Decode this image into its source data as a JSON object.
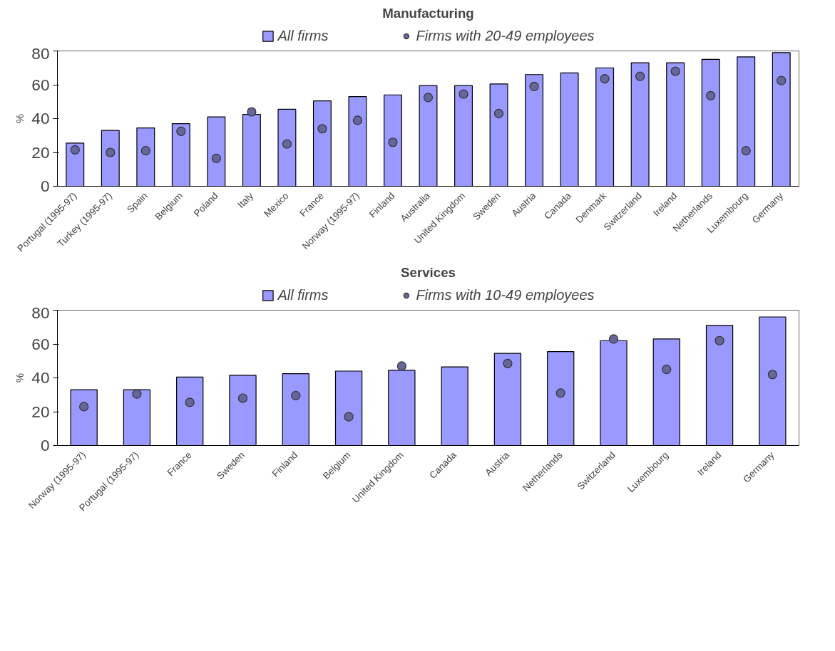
{
  "chart_data": [
    {
      "type": "bar",
      "title": "Manufacturing",
      "ylabel": "%",
      "categories": [
        "Portugal (1995-97)",
        "Turkey (1995-97)",
        "Spain",
        "Belgium",
        "Poland",
        "Italy",
        "Mexico",
        "France",
        "Norway (1995-97)",
        "Finland",
        "Australia",
        "United Kingdom",
        "Sweden",
        "Austria",
        "Canada",
        "Denmark",
        "Switzerland",
        "Ireland",
        "Netherlands",
        "Luxembourg",
        "Germany"
      ],
      "ylim": [
        0,
        80
      ],
      "yticks": [
        0,
        20,
        40,
        60,
        80
      ],
      "legend": "top",
      "grid": false,
      "series": [
        {
          "name": "All firms",
          "type": "bar",
          "color": "#9999ff",
          "values": [
            25.5,
            33,
            34.5,
            37,
            41,
            42.5,
            45.5,
            50.5,
            53,
            54,
            59.5,
            59.5,
            60.5,
            66,
            67,
            70,
            73,
            73,
            75,
            76.5,
            79
          ]
        },
        {
          "name": "Firms with 20-49 employees",
          "type": "scatter",
          "marker": "circle",
          "color": "#666699",
          "values": [
            21.5,
            20,
            21,
            32.5,
            16.5,
            44,
            25,
            34,
            39,
            26,
            52.5,
            54.5,
            43,
            59,
            null,
            63.5,
            65,
            68,
            53.5,
            21,
            62.5
          ]
        }
      ]
    },
    {
      "type": "bar",
      "title": "Services",
      "ylabel": "%",
      "categories": [
        "Norway (1995-97)",
        "Portugal (1995-97)",
        "France",
        "Sweden",
        "Finland",
        "Belgium",
        "United Kingdom",
        "Canada",
        "Austria",
        "Netherlands",
        "Switzerland",
        "Luxembourg",
        "Ireland",
        "Germany"
      ],
      "ylim": [
        0,
        80
      ],
      "yticks": [
        0,
        20,
        40,
        60,
        80
      ],
      "legend": "top",
      "grid": false,
      "series": [
        {
          "name": "All firms",
          "type": "bar",
          "color": "#9999ff",
          "values": [
            33,
            33,
            40.5,
            41.5,
            42.5,
            44,
            44.5,
            46.5,
            54.5,
            55.5,
            62,
            63,
            71,
            76
          ]
        },
        {
          "name": "Firms with 10-49 employees",
          "type": "scatter",
          "marker": "circle",
          "color": "#666699",
          "values": [
            23,
            30.5,
            25.5,
            28,
            29.5,
            17,
            47,
            null,
            48.5,
            31,
            63,
            45,
            62,
            42
          ]
        }
      ]
    }
  ]
}
